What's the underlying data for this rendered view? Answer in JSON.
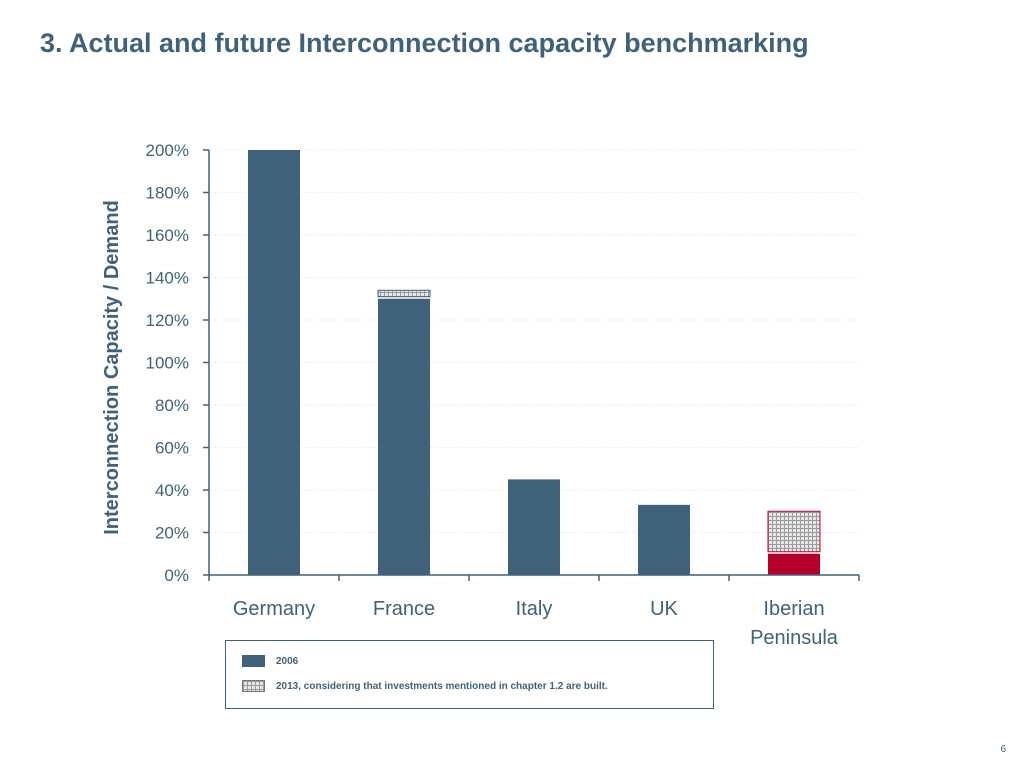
{
  "title": "3. Actual and future Interconnection capacity benchmarking",
  "page_number": "6",
  "colors": {
    "series_2006": "#3f627a",
    "iberian_2006": "#b5002b",
    "title": "#3f627a"
  },
  "legend": {
    "items": [
      {
        "label": "2006",
        "style": "solid"
      },
      {
        "label": "2013, considering that investments mentioned in chapter 1.2 are built.",
        "style": "hatched"
      }
    ]
  },
  "chart_data": {
    "type": "bar",
    "stacked": true,
    "categories": [
      "Germany",
      "France",
      "Italy",
      "UK",
      "Iberian Peninsula"
    ],
    "category_lines": [
      [
        "Germany"
      ],
      [
        "France"
      ],
      [
        "Italy"
      ],
      [
        "UK"
      ],
      [
        "Iberian",
        "Peninsula"
      ]
    ],
    "series": [
      {
        "name": "2006",
        "values": [
          200,
          130,
          45,
          33,
          10
        ]
      },
      {
        "name": "2013, considering that investments mentioned in chapter 1.2 are built.",
        "values": [
          0,
          4,
          0,
          0,
          20
        ]
      }
    ],
    "ylabel": "Interconnection Capacity / Demand",
    "xlabel": "",
    "ylim": [
      0,
      200
    ],
    "yticks": [
      "0%",
      "20%",
      "40%",
      "60%",
      "80%",
      "100%",
      "120%",
      "140%",
      "160%",
      "180%",
      "200%"
    ],
    "grid": true,
    "legend_position": "bottom"
  }
}
